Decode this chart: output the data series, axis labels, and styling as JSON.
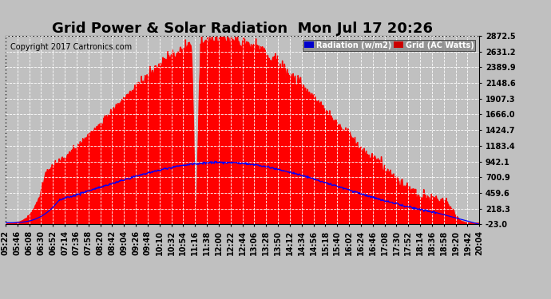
{
  "title": "Grid Power & Solar Radiation  Mon Jul 17 20:26",
  "copyright": "Copyright 2017 Cartronics.com",
  "background_color": "#c0c0c0",
  "plot_bg_color": "#c0c0c0",
  "yticks": [
    2872.5,
    2631.2,
    2389.9,
    2148.6,
    1907.3,
    1666.0,
    1424.7,
    1183.4,
    942.1,
    700.9,
    459.6,
    218.3,
    -23.0
  ],
  "ymin": -23.0,
  "ymax": 2872.5,
  "grid_color": "#ffffff",
  "solar_color": "#ff0000",
  "grid_line_color": "#0000ff",
  "legend_radiation_bg": "#0000cc",
  "legend_grid_bg": "#cc0000",
  "legend_text_color": "#ffffff",
  "title_fontsize": 13,
  "copyright_fontsize": 7,
  "tick_fontsize": 7
}
